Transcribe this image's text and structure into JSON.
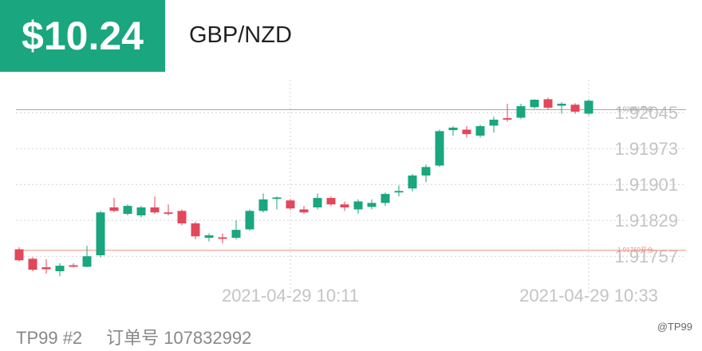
{
  "header": {
    "price": "$10.24",
    "pair": "GBP/NZD"
  },
  "chart_data": {
    "type": "candlestick",
    "categories": [
      null,
      null,
      null,
      null,
      null,
      null,
      null,
      null,
      null,
      null,
      null,
      null,
      null,
      null,
      null,
      null,
      null,
      null,
      null,
      null,
      "2021-04-29 10:11",
      null,
      null,
      null,
      null,
      null,
      null,
      null,
      null,
      null,
      null,
      null,
      null,
      null,
      null,
      null,
      null,
      null,
      null,
      null,
      null,
      null,
      "2021-04-29 10:33"
    ],
    "open": [
      1.91771,
      1.91752,
      1.91735,
      1.91727,
      1.91739,
      1.91736,
      1.91759,
      1.91855,
      1.91842,
      1.91839,
      1.91855,
      1.91845,
      1.91848,
      1.91823,
      1.91794,
      1.91795,
      1.91794,
      1.91811,
      1.91848,
      1.91872,
      1.91869,
      1.91851,
      1.91855,
      1.91874,
      1.91861,
      1.91851,
      1.91856,
      1.91864,
      1.91885,
      1.91893,
      1.91919,
      1.91939,
      1.9201,
      1.92011,
      1.91999,
      1.92019,
      1.92034,
      1.92035,
      1.92056,
      1.92072,
      1.92059,
      1.92061,
      1.92043
    ],
    "high": [
      1.91775,
      1.91755,
      1.91751,
      1.91743,
      1.91743,
      1.91778,
      1.91848,
      1.91874,
      1.91861,
      1.91858,
      1.91877,
      1.91861,
      1.91851,
      1.91826,
      1.91803,
      1.91803,
      1.91829,
      1.91851,
      1.91883,
      1.91877,
      1.91872,
      1.91858,
      1.91883,
      1.91877,
      1.91867,
      1.91871,
      1.91871,
      1.91885,
      1.91899,
      1.91922,
      1.91941,
      1.92011,
      1.92018,
      1.92018,
      1.92021,
      1.92037,
      1.92063,
      1.92063,
      1.92072,
      1.92075,
      1.92066,
      1.92064,
      1.92072
    ],
    "low": [
      1.91747,
      1.91727,
      1.91722,
      1.91717,
      1.91735,
      1.91735,
      1.91755,
      1.91845,
      1.91839,
      1.91835,
      1.91842,
      1.91839,
      1.91819,
      1.91791,
      1.91787,
      1.91783,
      1.91791,
      1.91808,
      1.91845,
      1.91851,
      1.9185,
      1.91842,
      1.91851,
      1.91858,
      1.91848,
      1.91842,
      1.91851,
      1.91858,
      1.91877,
      1.91887,
      1.91906,
      1.91936,
      1.91999,
      1.91995,
      1.91995,
      1.92005,
      1.92027,
      1.92032,
      1.92053,
      1.92051,
      1.92043,
      1.92043,
      1.9204
    ],
    "close": [
      1.91749,
      1.9173,
      1.91731,
      1.91738,
      1.91736,
      1.91757,
      1.91845,
      1.91848,
      1.91858,
      1.91855,
      1.91845,
      1.91842,
      1.91823,
      1.91797,
      1.91799,
      1.91792,
      1.9181,
      1.91848,
      1.91871,
      1.91875,
      1.91853,
      1.91845,
      1.91874,
      1.91861,
      1.91855,
      1.91867,
      1.91864,
      1.91882,
      1.91888,
      1.91919,
      1.91936,
      1.92008,
      1.92015,
      1.92002,
      1.92018,
      1.92031,
      1.92031,
      1.92058,
      1.92071,
      1.92055,
      1.92063,
      1.92047,
      1.92069
    ],
    "up_color": "#1aa67e",
    "down_color": "#e3475a",
    "ylim": [
      1.91695,
      1.92111
    ],
    "yticks": [
      1.91757,
      1.91829,
      1.91901,
      1.91973,
      1.92045
    ],
    "grid": true,
    "reference_lines": [
      {
        "value": 1.92051,
        "label": "1.92051平仓",
        "color": "#a8a8a8"
      },
      {
        "value": 1.91769,
        "label": "1.91769开仓",
        "color": "#f0907e"
      }
    ]
  },
  "footer": {
    "account": "TP99 #2",
    "order_label": "订单号",
    "order_number": "107832992",
    "watermark": "@TP99"
  }
}
